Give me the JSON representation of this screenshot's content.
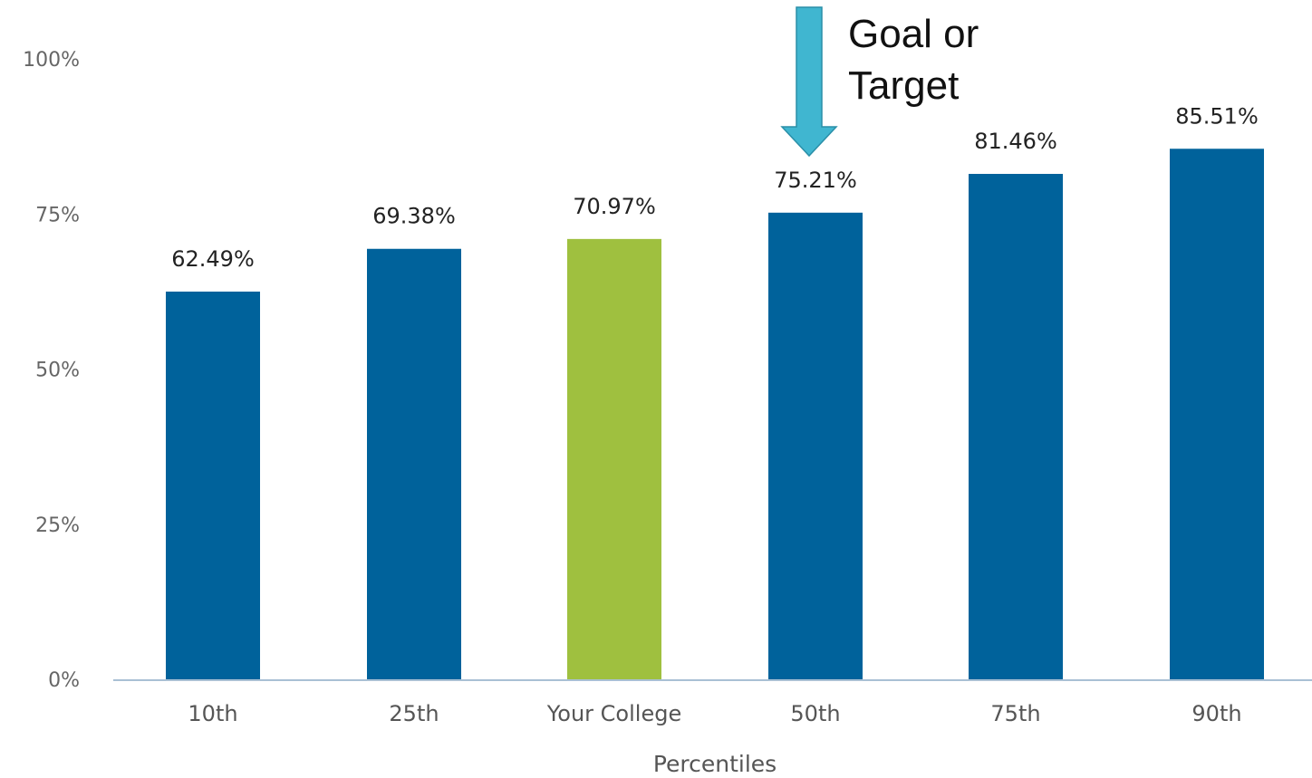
{
  "chart_data": {
    "type": "bar",
    "categories": [
      "10th",
      "25th",
      "Your College",
      "50th",
      "75th",
      "90th"
    ],
    "values": [
      62.49,
      69.38,
      70.97,
      75.21,
      81.46,
      85.51
    ],
    "value_labels": [
      "62.49%",
      "69.38%",
      "70.97%",
      "75.21%",
      "81.46%",
      "85.51%"
    ],
    "highlight_category": "Your College",
    "xlabel": "Percentiles",
    "ylabel": "",
    "ylim": [
      0,
      100
    ],
    "yticks": [
      0,
      25,
      50,
      75,
      100
    ],
    "ytick_labels": [
      "0%",
      "25%",
      "50%",
      "75%",
      "100%"
    ],
    "grid": false,
    "colors": {
      "bar": "#00629b",
      "highlight": "#9fc03f",
      "axis": "#a9c0d4",
      "arrow": "#40b6d0",
      "arrow_outline": "#2a8fa8"
    },
    "annotation": {
      "lines": [
        "Goal or",
        "Target"
      ],
      "points_to": "50th",
      "icon": "down-arrow-icon"
    }
  }
}
